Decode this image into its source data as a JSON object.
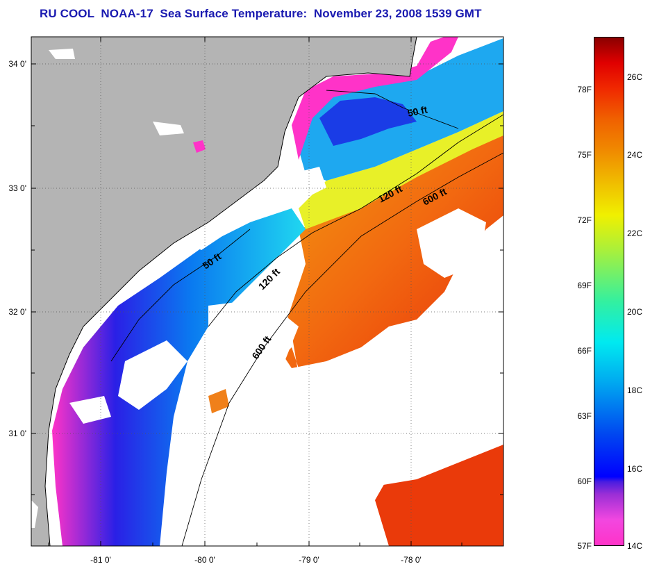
{
  "title": "RU COOL  NOAA-17  Sea Surface Temperature:  November 23, 2008 1539 GMT",
  "map": {
    "lat_labels": [
      "34 0'",
      "33 0'",
      "32 0'",
      "31 0'"
    ],
    "lon_labels": [
      "-81 0'",
      "-80 0'",
      "-79 0'",
      "-78 0'"
    ],
    "isobaths": [
      {
        "label": "50 ft"
      },
      {
        "label": "50 ft"
      },
      {
        "label": "120 ft"
      },
      {
        "label": "120 ft"
      },
      {
        "label": "600 ft"
      },
      {
        "label": "600 ft"
      }
    ],
    "colors": {
      "land": "#b4b4b4",
      "cloud": "#ffffff",
      "coastline": "#000000"
    }
  },
  "colorbar": {
    "fahrenheit_labels": [
      "78F",
      "75F",
      "72F",
      "69F",
      "66F",
      "63F",
      "60F",
      "57F"
    ],
    "celsius_labels": [
      "26C",
      "24C",
      "22C",
      "20C",
      "18C",
      "16C",
      "14C"
    ]
  }
}
